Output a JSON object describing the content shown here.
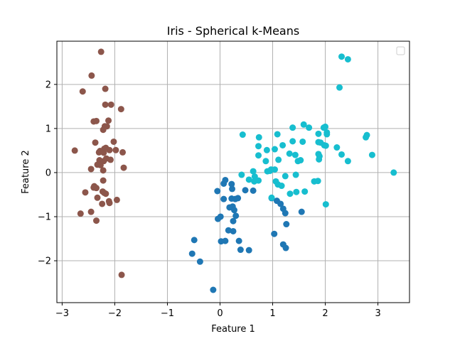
{
  "chart_data": {
    "type": "scatter",
    "title": "Iris - Spherical k-Means",
    "xlabel": "Feature 1",
    "ylabel": "Feature 2",
    "xlim": [
      -3.1,
      3.6
    ],
    "ylim": [
      -2.95,
      2.98
    ],
    "xticks": [
      -3,
      -2,
      -1,
      0,
      1,
      2,
      3
    ],
    "yticks": [
      -2,
      -1,
      0,
      1,
      2
    ],
    "xtick_labels": [
      "−3",
      "−2",
      "−1",
      "0",
      "1",
      "2",
      "3"
    ],
    "ytick_labels": [
      "−2",
      "−1",
      "0",
      "1",
      "2"
    ],
    "grid": true,
    "legend": {
      "placement": "upper-right",
      "entries": []
    },
    "series": [
      {
        "color": "#8c564b",
        "points": [
          [
            -2.26,
            2.74
          ],
          [
            -2.44,
            2.2
          ],
          [
            -2.61,
            1.84
          ],
          [
            -2.18,
            1.9
          ],
          [
            -2.35,
            1.17
          ],
          [
            -2.4,
            1.16
          ],
          [
            -2.12,
            1.18
          ],
          [
            -2.19,
            1.05
          ],
          [
            -2.22,
            0.97
          ],
          [
            -2.18,
            1.54
          ],
          [
            -2.07,
            1.54
          ],
          [
            -1.88,
            1.44
          ],
          [
            -2.15,
            1.05
          ],
          [
            -2.76,
            0.5
          ],
          [
            -2.02,
            0.7
          ],
          [
            -2.37,
            0.68
          ],
          [
            -2.1,
            0.51
          ],
          [
            -2.21,
            0.45
          ],
          [
            -2.3,
            0.46
          ],
          [
            -2.2,
            0.54
          ],
          [
            -1.98,
            0.51
          ],
          [
            -2.28,
            0.49
          ],
          [
            -2.17,
            0.56
          ],
          [
            -1.85,
            0.46
          ],
          [
            -2.29,
            0.28
          ],
          [
            -2.21,
            0.26
          ],
          [
            -2.27,
            0.17
          ],
          [
            -2.16,
            0.32
          ],
          [
            -2.33,
            0.18
          ],
          [
            -2.45,
            0.08
          ],
          [
            -1.83,
            0.11
          ],
          [
            -2.08,
            0.29
          ],
          [
            -2.22,
            0.05
          ],
          [
            -2.22,
            -0.18
          ],
          [
            -2.39,
            -0.31
          ],
          [
            -2.35,
            -0.35
          ],
          [
            -2.4,
            -0.34
          ],
          [
            -2.23,
            -0.43
          ],
          [
            -2.2,
            -0.46
          ],
          [
            -2.17,
            -0.48
          ],
          [
            -2.56,
            -0.45
          ],
          [
            -2.33,
            -0.57
          ],
          [
            -2.11,
            -0.65
          ],
          [
            -2.24,
            -0.71
          ],
          [
            -2.1,
            -0.69
          ],
          [
            -1.96,
            -0.62
          ],
          [
            -2.45,
            -0.89
          ],
          [
            -2.65,
            -0.93
          ],
          [
            -2.35,
            -1.09
          ],
          [
            -1.87,
            -2.32
          ]
        ]
      },
      {
        "color": "#1f77b4",
        "points": [
          [
            0.1,
            -0.17
          ],
          [
            0.07,
            -0.25
          ],
          [
            -0.05,
            -0.42
          ],
          [
            0.22,
            -0.26
          ],
          [
            0.23,
            -0.37
          ],
          [
            0.48,
            -0.4
          ],
          [
            0.63,
            -0.41
          ],
          [
            0.34,
            -0.58
          ],
          [
            0.22,
            -0.59
          ],
          [
            0.29,
            -0.6
          ],
          [
            0.07,
            -0.6
          ],
          [
            1.15,
            -0.71
          ],
          [
            1.08,
            -0.64
          ],
          [
            1.2,
            -0.82
          ],
          [
            1.24,
            -0.92
          ],
          [
            0.98,
            -0.58
          ],
          [
            1.55,
            -0.89
          ],
          [
            -0.04,
            -1.05
          ],
          [
            0.01,
            -1.0
          ],
          [
            0.18,
            -0.79
          ],
          [
            0.24,
            -0.77
          ],
          [
            0.27,
            -0.85
          ],
          [
            0.3,
            -0.98
          ],
          [
            0.25,
            -1.1
          ],
          [
            0.16,
            -1.31
          ],
          [
            0.25,
            -1.33
          ],
          [
            1.03,
            -1.39
          ],
          [
            1.26,
            -1.17
          ],
          [
            -0.49,
            -1.53
          ],
          [
            0.02,
            -1.56
          ],
          [
            0.1,
            -1.55
          ],
          [
            0.36,
            -1.55
          ],
          [
            0.39,
            -1.75
          ],
          [
            0.55,
            -1.76
          ],
          [
            1.2,
            -1.63
          ],
          [
            1.25,
            -1.71
          ],
          [
            -0.53,
            -1.84
          ],
          [
            -0.38,
            -2.02
          ],
          [
            -0.13,
            -2.66
          ]
        ]
      },
      {
        "color": "#17becf",
        "points": [
          [
            2.31,
            2.63
          ],
          [
            2.43,
            2.57
          ],
          [
            2.27,
            1.93
          ],
          [
            1.59,
            1.09
          ],
          [
            1.69,
            1.02
          ],
          [
            1.38,
            1.02
          ],
          [
            1.97,
            1.02
          ],
          [
            2.0,
            1.04
          ],
          [
            2.03,
            0.91
          ],
          [
            2.03,
            0.87
          ],
          [
            1.87,
            0.88
          ],
          [
            1.09,
            0.87
          ],
          [
            0.43,
            0.86
          ],
          [
            0.74,
            0.8
          ],
          [
            2.77,
            0.8
          ],
          [
            2.79,
            0.85
          ],
          [
            1.38,
            0.71
          ],
          [
            1.57,
            0.7
          ],
          [
            1.19,
            0.62
          ],
          [
            1.87,
            0.69
          ],
          [
            1.91,
            0.68
          ],
          [
            1.98,
            0.62
          ],
          [
            2.01,
            0.61
          ],
          [
            2.22,
            0.57
          ],
          [
            0.73,
            0.6
          ],
          [
            1.04,
            0.53
          ],
          [
            0.89,
            0.51
          ],
          [
            1.32,
            0.43
          ],
          [
            1.43,
            0.4
          ],
          [
            1.87,
            0.42
          ],
          [
            1.89,
            0.37
          ],
          [
            2.31,
            0.41
          ],
          [
            2.43,
            0.26
          ],
          [
            2.89,
            0.4
          ],
          [
            0.73,
            0.39
          ],
          [
            0.87,
            0.26
          ],
          [
            1.11,
            0.29
          ],
          [
            1.48,
            0.26
          ],
          [
            1.53,
            0.28
          ],
          [
            1.88,
            0.3
          ],
          [
            0.63,
            0.03
          ],
          [
            0.9,
            0.03
          ],
          [
            0.95,
            0.04
          ],
          [
            0.97,
            0.07
          ],
          [
            1.04,
            0.07
          ],
          [
            0.41,
            -0.05
          ],
          [
            0.66,
            -0.09
          ],
          [
            1.24,
            -0.08
          ],
          [
            1.44,
            -0.05
          ],
          [
            0.55,
            -0.16
          ],
          [
            0.65,
            -0.2
          ],
          [
            0.73,
            -0.18
          ],
          [
            1.06,
            -0.2
          ],
          [
            1.1,
            -0.27
          ],
          [
            1.17,
            -0.3
          ],
          [
            1.79,
            -0.2
          ],
          [
            1.86,
            -0.19
          ],
          [
            1.33,
            -0.48
          ],
          [
            1.45,
            -0.44
          ],
          [
            1.61,
            -0.43
          ],
          [
            0.98,
            -0.57
          ],
          [
            2.01,
            -0.72
          ],
          [
            3.3,
            0.0
          ]
        ]
      }
    ]
  }
}
